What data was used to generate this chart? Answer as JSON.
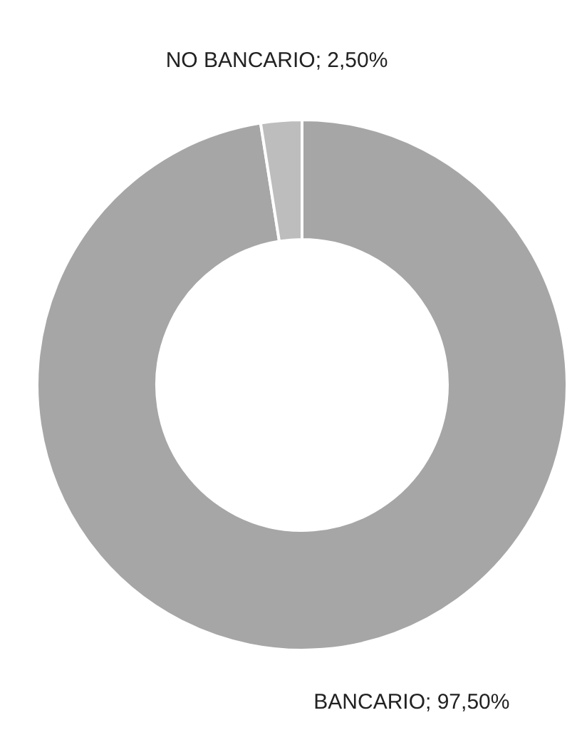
{
  "chart_data": {
    "type": "donut",
    "categories": [
      "BANCARIO",
      "NO BANCARIO"
    ],
    "values": [
      97.5,
      2.5
    ],
    "colors": [
      "#a6a6a6",
      "#bdbdbd"
    ],
    "value_labels": [
      "97,50%",
      "2,50%"
    ],
    "legend": false
  }
}
